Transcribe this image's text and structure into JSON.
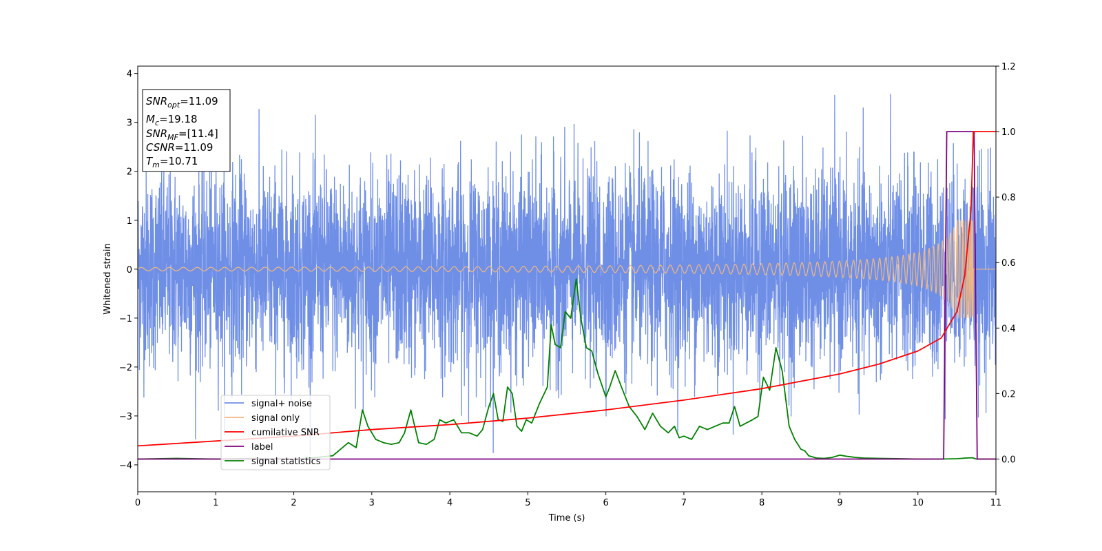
{
  "chart_data": {
    "type": "line",
    "xlabel": "Time (s)",
    "ylabel": "Whitened strain",
    "xlim": [
      0,
      11
    ],
    "ylim_left": [
      -4.55,
      4.15
    ],
    "ylim_right": [
      -0.1,
      1.2
    ],
    "x_ticks": [
      0,
      1,
      2,
      3,
      4,
      5,
      6,
      7,
      8,
      9,
      10,
      11
    ],
    "y_ticks_left": [
      -4,
      -3,
      -2,
      -1,
      0,
      1,
      2,
      3,
      4
    ],
    "y_tick_labels_left": [
      "−4",
      "−3",
      "−2",
      "−1",
      "0",
      "1",
      "2",
      "3",
      "4"
    ],
    "y_ticks_right": [
      0.0,
      0.2,
      0.4,
      0.6,
      0.8,
      1.0,
      1.2
    ],
    "y_tick_labels_right": [
      "0.0",
      "0.2",
      "0.4",
      "0.6",
      "0.8",
      "1.0",
      "1.2"
    ],
    "grid": false,
    "legend_position": "lower-left",
    "colors": {
      "signal_noise": "#6f8fe6",
      "signal_only": "#f2b880",
      "cumulative_snr": "#ff0000",
      "label": "#800080",
      "signal_statistics": "#008000"
    },
    "series": [
      {
        "name": "signal+ noise",
        "axis": "left",
        "style": "noise",
        "std": 1.0,
        "peak_max": 3.78,
        "peak_min": -3.78
      },
      {
        "name": "signal only",
        "axis": "left",
        "style": "chirp",
        "t_merge": 10.71,
        "max_amplitude": 1.0
      },
      {
        "name": "cumilative SNR",
        "axis": "right",
        "x": [
          0,
          1,
          2,
          3,
          4,
          5,
          6,
          7,
          8,
          9,
          9.5,
          10,
          10.3,
          10.5,
          10.6,
          10.68,
          10.71,
          11
        ],
        "y": [
          0.04,
          0.055,
          0.07,
          0.09,
          0.105,
          0.125,
          0.15,
          0.18,
          0.215,
          0.26,
          0.29,
          0.33,
          0.37,
          0.45,
          0.56,
          0.76,
          1.0,
          1.0
        ]
      },
      {
        "name": "label",
        "axis": "right",
        "x": [
          0,
          10.33,
          10.37,
          10.68,
          10.72,
          10.76,
          11
        ],
        "y": [
          0,
          0,
          1.0,
          1.0,
          1.0,
          0,
          0
        ]
      },
      {
        "name": "signal statistics",
        "axis": "right",
        "x": [
          0,
          0.5,
          1,
          1.5,
          2,
          2.3,
          2.5,
          2.6,
          2.7,
          2.8,
          2.88,
          2.95,
          3.05,
          3.15,
          3.25,
          3.35,
          3.42,
          3.5,
          3.6,
          3.7,
          3.8,
          3.87,
          3.95,
          4.05,
          4.15,
          4.25,
          4.35,
          4.42,
          4.5,
          4.56,
          4.62,
          4.68,
          4.74,
          4.8,
          4.86,
          4.92,
          4.98,
          5.05,
          5.15,
          5.25,
          5.3,
          5.35,
          5.42,
          5.48,
          5.55,
          5.62,
          5.68,
          5.75,
          5.82,
          5.9,
          6.0,
          6.05,
          6.12,
          6.2,
          6.3,
          6.4,
          6.5,
          6.6,
          6.7,
          6.8,
          6.88,
          6.94,
          7.0,
          7.1,
          7.2,
          7.3,
          7.4,
          7.5,
          7.58,
          7.65,
          7.72,
          7.8,
          7.88,
          7.95,
          8.02,
          8.1,
          8.18,
          8.26,
          8.35,
          8.42,
          8.5,
          8.55,
          8.6,
          8.7,
          8.8,
          8.9,
          9.0,
          9.1,
          9.2,
          9.3,
          9.5,
          9.8,
          10.0,
          10.3,
          10.5,
          10.62,
          10.7,
          10.75,
          10.8,
          11
        ],
        "y": [
          0.0,
          0.002,
          0.0,
          0.002,
          0.0,
          0.005,
          0.01,
          0.03,
          0.05,
          0.035,
          0.15,
          0.1,
          0.06,
          0.05,
          0.045,
          0.05,
          0.08,
          0.15,
          0.05,
          0.045,
          0.06,
          0.12,
          0.11,
          0.12,
          0.08,
          0.08,
          0.07,
          0.09,
          0.16,
          0.2,
          0.12,
          0.115,
          0.22,
          0.2,
          0.1,
          0.085,
          0.12,
          0.11,
          0.17,
          0.22,
          0.41,
          0.35,
          0.34,
          0.45,
          0.43,
          0.55,
          0.43,
          0.34,
          0.33,
          0.26,
          0.19,
          0.22,
          0.27,
          0.22,
          0.16,
          0.13,
          0.09,
          0.14,
          0.1,
          0.08,
          0.1,
          0.065,
          0.07,
          0.06,
          0.1,
          0.09,
          0.1,
          0.11,
          0.11,
          0.16,
          0.1,
          0.11,
          0.12,
          0.13,
          0.25,
          0.21,
          0.34,
          0.27,
          0.1,
          0.06,
          0.03,
          0.025,
          0.01,
          0.003,
          0.002,
          0.005,
          0.012,
          0.008,
          0.005,
          0.003,
          0.002,
          0.001,
          0.0,
          0.0,
          0.001,
          0.003,
          0.004,
          0.0,
          0.0,
          0.0
        ]
      }
    ],
    "annotation": [
      {
        "main": "SNR",
        "sub": "opt",
        "value": "=11.09"
      },
      {
        "main": "M",
        "sub": "c",
        "value": "=19.18"
      },
      {
        "main": "SNR",
        "sub": "MF",
        "value": "=[11.4]"
      },
      {
        "main": "CSNR",
        "sub": "",
        "value": "=11.09"
      },
      {
        "main": "T",
        "sub": "m",
        "value": "=10.71"
      }
    ]
  }
}
